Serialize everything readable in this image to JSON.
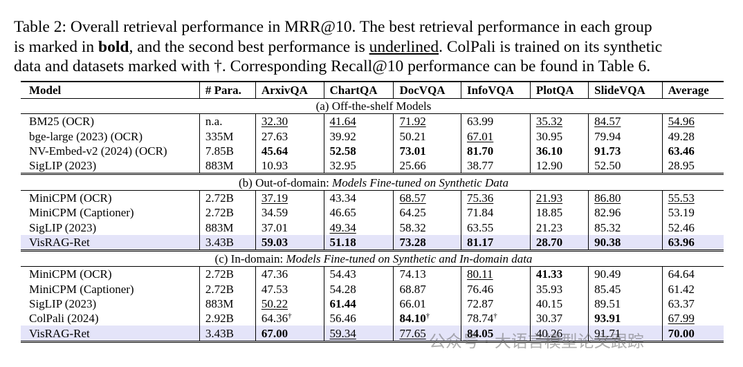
{
  "caption": [
    [
      {
        "text": "Table 2: Overall retrieval performance in MRR@10. The best retrieval performance in each group",
        "style": "plain"
      }
    ],
    [
      {
        "text": "is marked in ",
        "style": "plain"
      },
      {
        "text": "bold",
        "style": "bold"
      },
      {
        "text": ", and the second best performance is ",
        "style": "plain"
      },
      {
        "text": "underlined",
        "style": "underline"
      },
      {
        "text": ". ColPali is trained on its synthetic",
        "style": "plain"
      }
    ],
    [
      {
        "text": "data and datasets marked with †. Corresponding Recall@10 performance can be found in Table 6.",
        "style": "plain"
      }
    ]
  ],
  "table": {
    "header": [
      "Model",
      "# Para.",
      "ArxivQA",
      "ChartQA",
      "DocVQA",
      "InfoVQA",
      "PlotQA",
      "SlideVQA",
      "Average"
    ],
    "groups": [
      {
        "title": [
          {
            "text": "(a) Off-the-shelf Models",
            "style": "plain"
          }
        ],
        "rows": [
          {
            "cells": [
              {
                "text": "BM25 (OCR)"
              },
              {
                "text": "n.a."
              },
              {
                "text": "32.30",
                "style": "underline"
              },
              {
                "text": "41.64",
                "style": "underline"
              },
              {
                "text": "71.92",
                "style": "underline"
              },
              {
                "text": "63.99"
              },
              {
                "text": "35.32",
                "style": "underline"
              },
              {
                "text": "84.57",
                "style": "underline"
              },
              {
                "text": "54.96",
                "style": "underline"
              }
            ]
          },
          {
            "cells": [
              {
                "text": "bge-large (2023) (OCR)"
              },
              {
                "text": "335M"
              },
              {
                "text": "27.63"
              },
              {
                "text": "39.92"
              },
              {
                "text": "50.21"
              },
              {
                "text": "67.01",
                "style": "underline"
              },
              {
                "text": "30.95"
              },
              {
                "text": "79.94"
              },
              {
                "text": "49.28"
              }
            ]
          },
          {
            "cells": [
              {
                "text": "NV-Embed-v2 (2024) (OCR)"
              },
              {
                "text": "7.85B"
              },
              {
                "text": "45.64",
                "style": "bold"
              },
              {
                "text": "52.58",
                "style": "bold"
              },
              {
                "text": "73.01",
                "style": "bold"
              },
              {
                "text": "81.70",
                "style": "bold"
              },
              {
                "text": "36.10",
                "style": "bold"
              },
              {
                "text": "91.73",
                "style": "bold"
              },
              {
                "text": "63.46",
                "style": "bold"
              }
            ]
          },
          {
            "cells": [
              {
                "text": "SigLIP (2023)"
              },
              {
                "text": "883M"
              },
              {
                "text": "10.93"
              },
              {
                "text": "32.95"
              },
              {
                "text": "25.66"
              },
              {
                "text": "38.77"
              },
              {
                "text": "12.90"
              },
              {
                "text": "52.50"
              },
              {
                "text": "28.95"
              }
            ]
          }
        ]
      },
      {
        "title": [
          {
            "text": "(b) Out-of-domain: ",
            "style": "plain"
          },
          {
            "text": "Models Fine-tuned on Synthetic Data",
            "style": "italic"
          }
        ],
        "rows": [
          {
            "cells": [
              {
                "text": "MiniCPM (OCR)"
              },
              {
                "text": "2.72B"
              },
              {
                "text": "37.19",
                "style": "underline"
              },
              {
                "text": "43.34"
              },
              {
                "text": "68.57",
                "style": "underline"
              },
              {
                "text": "75.36",
                "style": "underline"
              },
              {
                "text": "21.93",
                "style": "underline"
              },
              {
                "text": "86.80",
                "style": "underline"
              },
              {
                "text": "55.53",
                "style": "underline"
              }
            ]
          },
          {
            "cells": [
              {
                "text": "MiniCPM (Captioner)"
              },
              {
                "text": "2.72B"
              },
              {
                "text": "34.59"
              },
              {
                "text": "46.65"
              },
              {
                "text": "64.25"
              },
              {
                "text": "71.84"
              },
              {
                "text": "18.85"
              },
              {
                "text": "82.96"
              },
              {
                "text": "53.19"
              }
            ]
          },
          {
            "cells": [
              {
                "text": "SigLIP (2023)"
              },
              {
                "text": "883M"
              },
              {
                "text": "37.01"
              },
              {
                "text": "49.34",
                "style": "underline"
              },
              {
                "text": "58.32"
              },
              {
                "text": "63.55"
              },
              {
                "text": "21.23"
              },
              {
                "text": "85.32"
              },
              {
                "text": "52.46"
              }
            ]
          },
          {
            "highlight": true,
            "cells": [
              {
                "text": "VisRAG-Ret"
              },
              {
                "text": "3.43B"
              },
              {
                "text": "59.03",
                "style": "bold"
              },
              {
                "text": "51.18",
                "style": "bold"
              },
              {
                "text": "73.28",
                "style": "bold"
              },
              {
                "text": "81.17",
                "style": "bold"
              },
              {
                "text": "28.70",
                "style": "bold"
              },
              {
                "text": "90.38",
                "style": "bold"
              },
              {
                "text": "63.96",
                "style": "bold"
              }
            ]
          }
        ]
      },
      {
        "title": [
          {
            "text": "(c) In-domain: ",
            "style": "plain"
          },
          {
            "text": "Models Fine-tuned on Synthetic and In-domain data",
            "style": "italic"
          }
        ],
        "rows": [
          {
            "cells": [
              {
                "text": "MiniCPM (OCR)"
              },
              {
                "text": "2.72B"
              },
              {
                "text": "47.36"
              },
              {
                "text": "54.43"
              },
              {
                "text": "74.13"
              },
              {
                "text": "80.11",
                "style": "underline"
              },
              {
                "text": "41.33",
                "style": "bold"
              },
              {
                "text": "90.49"
              },
              {
                "text": "64.64"
              }
            ]
          },
          {
            "cells": [
              {
                "text": "MiniCPM (Captioner)"
              },
              {
                "text": "2.72B"
              },
              {
                "text": "47.53"
              },
              {
                "text": "54.28"
              },
              {
                "text": "68.87"
              },
              {
                "text": "76.46"
              },
              {
                "text": "35.93"
              },
              {
                "text": "85.45"
              },
              {
                "text": "61.42"
              }
            ]
          },
          {
            "cells": [
              {
                "text": "SigLIP (2023)"
              },
              {
                "text": "883M"
              },
              {
                "text": "50.22",
                "style": "underline"
              },
              {
                "text": "61.44",
                "style": "bold"
              },
              {
                "text": "66.01"
              },
              {
                "text": "72.87"
              },
              {
                "text": "40.15"
              },
              {
                "text": "89.51"
              },
              {
                "text": "63.37"
              }
            ]
          },
          {
            "cells": [
              {
                "text": "ColPali (2024)"
              },
              {
                "text": "2.92B"
              },
              {
                "text": "64.36",
                "sup": "†"
              },
              {
                "text": "56.46"
              },
              {
                "text": "84.10",
                "style": "bold",
                "sup": "†"
              },
              {
                "text": "78.74",
                "sup": "†"
              },
              {
                "text": "30.37"
              },
              {
                "text": "93.91",
                "style": "bold"
              },
              {
                "text": "67.99",
                "style": "underline"
              }
            ]
          },
          {
            "highlight": true,
            "cells": [
              {
                "text": "VisRAG-Ret"
              },
              {
                "text": "3.43B"
              },
              {
                "text": "67.00",
                "style": "bold"
              },
              {
                "text": "59.34",
                "style": "underline"
              },
              {
                "text": "77.65",
                "style": "underline"
              },
              {
                "text": "84.05",
                "style": "bold"
              },
              {
                "text": "40.26",
                "style": "underline"
              },
              {
                "text": "91.71",
                "style": "underline"
              },
              {
                "text": "70.00",
                "style": "bold"
              }
            ]
          }
        ]
      }
    ]
  },
  "watermark": "公众号 · 大语言模型论文跟踪"
}
